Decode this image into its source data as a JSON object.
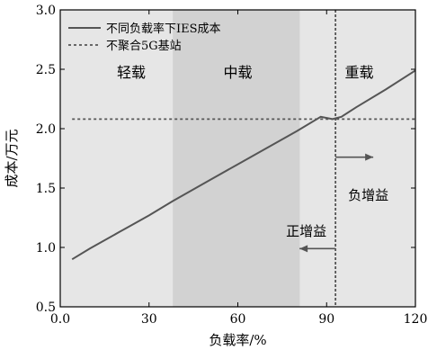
{
  "chart_data": {
    "type": "line",
    "xlabel": "负载率/%",
    "ylabel": "成本/万元",
    "xlim": [
      0,
      120
    ],
    "ylim": [
      0.5,
      3.0
    ],
    "xticks": [
      "0.0",
      "30",
      "60",
      "90",
      "120"
    ],
    "yticks": [
      "0.5",
      "1.0",
      "1.5",
      "2.0",
      "2.5",
      "3.0"
    ],
    "regions": [
      {
        "label": "轻载",
        "x_range": [
          0,
          38
        ],
        "color": "#e6e6e6"
      },
      {
        "label": "中载",
        "x_range": [
          38,
          81
        ],
        "color": "#d2d2d2"
      },
      {
        "label": "重载",
        "x_range": [
          81,
          120
        ],
        "color": "#e6e6e6"
      }
    ],
    "series": [
      {
        "name": "不同负载率下IES成本",
        "style": "solid",
        "color": "#555555",
        "x": [
          4,
          10,
          20,
          30,
          38,
          50,
          60,
          70,
          80,
          88,
          92,
          95,
          100,
          110,
          120
        ],
        "y": [
          0.9,
          0.99,
          1.13,
          1.27,
          1.39,
          1.56,
          1.7,
          1.84,
          1.98,
          2.1,
          2.08,
          2.1,
          2.18,
          2.33,
          2.49
        ]
      },
      {
        "name": "不聚合5G基站",
        "style": "dotted",
        "color": "#555555",
        "x": [
          4,
          120
        ],
        "y": [
          2.08,
          2.08
        ]
      }
    ],
    "vline": {
      "x": 93,
      "style": "dotted",
      "color": "#555555"
    },
    "annotations": [
      {
        "text": "负增益",
        "arrow": "right"
      },
      {
        "text": "正增益",
        "arrow": "left"
      }
    ],
    "legend": {
      "placement": "top-left"
    },
    "grid": false
  }
}
